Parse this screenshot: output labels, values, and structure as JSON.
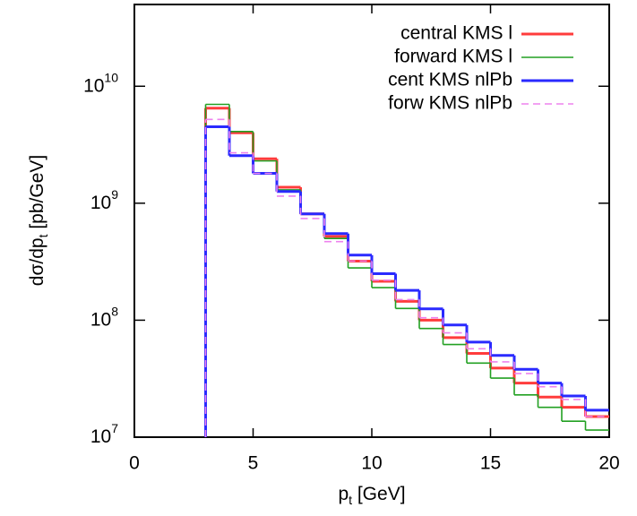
{
  "chart_data": {
    "type": "histogram",
    "xlabel": "p_t [GeV]",
    "ylabel": "dσ/dp_t [pb/GeV]",
    "xlim": [
      0,
      20
    ],
    "xticks": [
      0,
      5,
      10,
      15,
      20
    ],
    "ylim": [
      10000000,
      50000000000
    ],
    "log_y": true,
    "yticks": [
      {
        "value": 10000000,
        "label": "10^7"
      },
      {
        "value": 100000000,
        "label": "10^8"
      },
      {
        "value": 1000000000,
        "label": "10^9"
      },
      {
        "value": 10000000000,
        "label": "10^10"
      }
    ],
    "legend": "upper right",
    "bins": [
      3,
      4,
      5,
      6,
      7,
      8,
      9,
      10,
      11,
      12,
      13,
      14,
      15,
      16,
      17,
      18,
      19,
      20
    ],
    "series": [
      {
        "name": "central KMS l",
        "color": "#ff3c3c",
        "values": [
          6500000000,
          4000000000,
          2400000000,
          1370000000,
          810000000,
          520000000,
          320000000,
          215000000,
          145000000,
          100000000,
          71000000,
          52000000,
          39000000,
          29000000,
          22000000,
          18000000,
          15000000
        ]
      },
      {
        "name": "forward KMS l",
        "color": "#22a022",
        "values": [
          7000000000,
          4100000000,
          2300000000,
          1300000000,
          810000000,
          500000000,
          280000000,
          190000000,
          126000000,
          85000000,
          62000000,
          43000000,
          32000000,
          23000000,
          18000000,
          13700000,
          11500000
        ]
      },
      {
        "name": "cent KMS nlPb",
        "color": "#2a2aff",
        "values": [
          4500000000,
          2550000000,
          1800000000,
          1260000000,
          810000000,
          550000000,
          360000000,
          250000000,
          180000000,
          125000000,
          91000000,
          65000000,
          50000000,
          38000000,
          29000000,
          22500000,
          17000000
        ]
      },
      {
        "name": "forw KMS nlPb",
        "color": "#ee82ee",
        "dashed": true,
        "values": [
          5200000000,
          2700000000,
          1800000000,
          1150000000,
          740000000,
          470000000,
          320000000,
          220000000,
          150000000,
          105000000,
          78000000,
          57000000,
          44000000,
          35000000,
          27000000,
          21000000,
          15000000
        ]
      }
    ]
  }
}
